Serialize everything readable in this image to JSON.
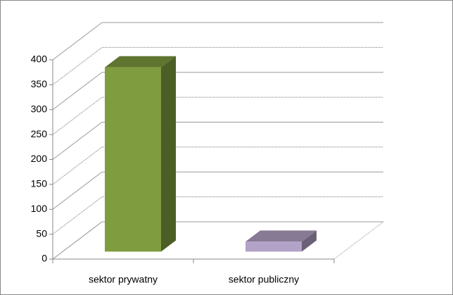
{
  "chart_data": {
    "type": "bar3d",
    "categories": [
      "sektor prywatny",
      "sektor publiczny"
    ],
    "series": [
      {
        "values": [
          370,
          20
        ],
        "colors": [
          "#7f9c3f",
          "#b3a2c7"
        ]
      }
    ],
    "ylim": [
      0,
      400
    ],
    "yticks": [
      0,
      50,
      100,
      150,
      200,
      250,
      300,
      350,
      400
    ],
    "grid": true
  }
}
